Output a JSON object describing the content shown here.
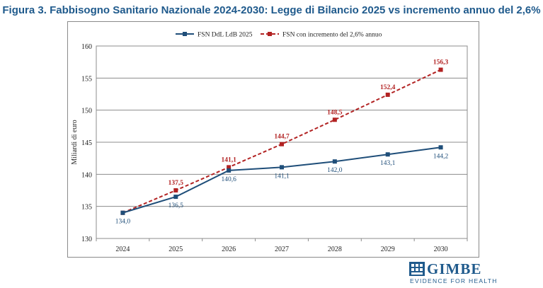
{
  "title": "Figura 3. Fabbisogno Sanitario Nazionale 2024-2030: Legge di Bilancio 2025 vs incremento annuo del 2,6%",
  "logo": {
    "name": "GIMBE",
    "tagline": "EVIDENCE FOR HEALTH"
  },
  "chart_data": {
    "type": "line",
    "title": "",
    "xlabel": "",
    "ylabel": "Miliardi di euro",
    "ylim": [
      130,
      160
    ],
    "yticks": [
      "130",
      "135",
      "140",
      "145",
      "150",
      "155",
      "160"
    ],
    "categories": [
      "2024",
      "2025",
      "2026",
      "2027",
      "2028",
      "2029",
      "2030"
    ],
    "grid": true,
    "legend_position": "top",
    "series": [
      {
        "name": "FSN DdL LdB 2025",
        "color": "#1f4e79",
        "style": "solid",
        "marker": "square",
        "values": [
          134.0,
          136.5,
          140.6,
          141.1,
          142.0,
          143.1,
          144.2
        ],
        "labels": [
          "134,0",
          "136,5",
          "140,6",
          "141,1",
          "142,0",
          "143,1",
          "144,2"
        ]
      },
      {
        "name": "FSN con incremento del 2,6% annuo",
        "color": "#b22222",
        "style": "dashed",
        "marker": "square",
        "values": [
          134.0,
          137.5,
          141.1,
          144.7,
          148.5,
          152.4,
          156.3
        ],
        "labels": [
          "",
          "137,5",
          "141,1",
          "144,7",
          "148,5",
          "152,4",
          "156,3"
        ]
      }
    ]
  }
}
